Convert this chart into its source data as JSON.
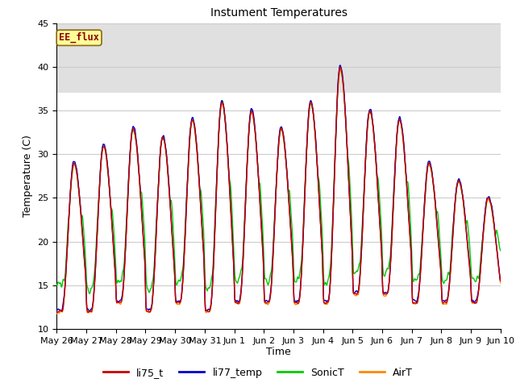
{
  "title": "Instument Temperatures",
  "xlabel": "Time",
  "ylabel": "Temperature (C)",
  "ylim": [
    10,
    45
  ],
  "shaded_band": [
    37,
    45
  ],
  "shaded_color": "#e0e0e0",
  "annotation_text": "EE_flux",
  "annotation_color": "#8b0000",
  "annotation_bg": "#ffff99",
  "annotation_border": "#8b6914",
  "line_colors": {
    "li75_t": "#cc0000",
    "li77_temp": "#0000cc",
    "SonicT": "#00cc00",
    "AirT": "#ff8800"
  },
  "x_tick_labels": [
    "May 26",
    "May 27",
    "May 28",
    "May 29",
    "May 30",
    "May 31",
    "Jun 1",
    "Jun 2",
    "Jun 3",
    "Jun 4",
    "Jun 5",
    "Jun 6",
    "Jun 7",
    "Jun 8",
    "Jun 9",
    "Jun 10"
  ],
  "axes_bg": "#ffffff",
  "grid_color": "#cccccc",
  "fig_width": 6.4,
  "fig_height": 4.8,
  "dpi": 100
}
